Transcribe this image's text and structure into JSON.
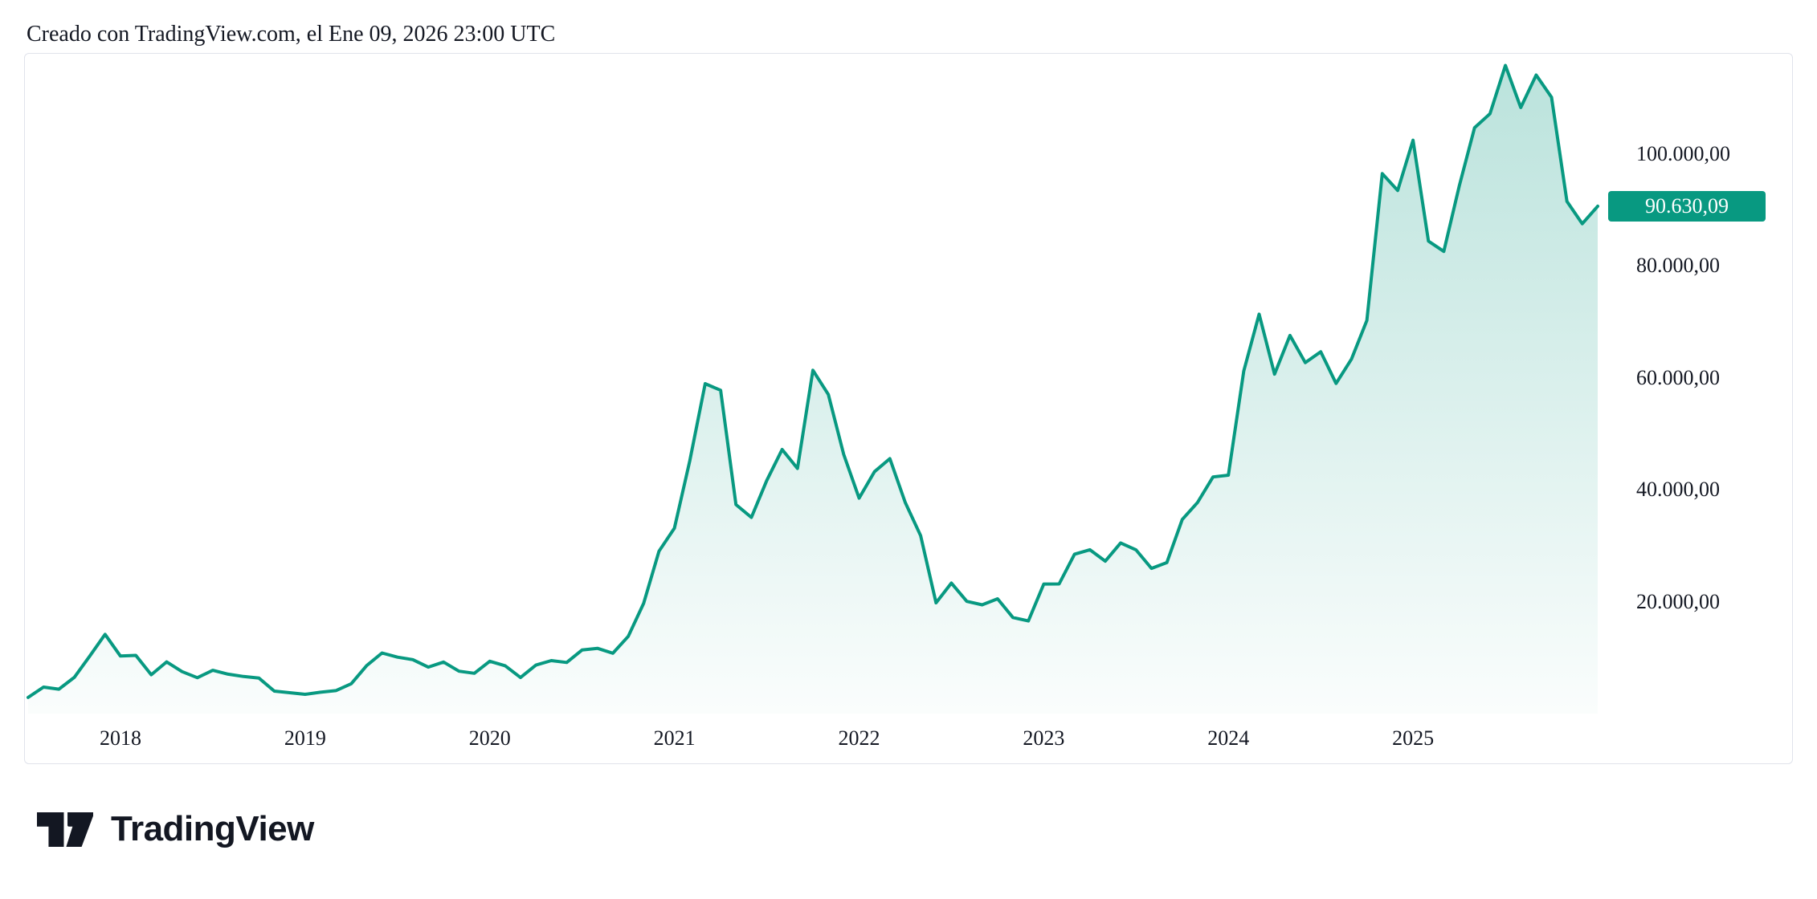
{
  "header": {
    "attribution": "Creado con TradingView.com, el Ene 09, 2026 23:00 UTC"
  },
  "footer": {
    "brand": "TradingView"
  },
  "colors": {
    "accent": "#089981",
    "badge_text": "#ffffff",
    "text": "#131722",
    "border": "#e0e3eb",
    "background": "#ffffff"
  },
  "chart_data": {
    "type": "area",
    "title": "",
    "xlabel": "",
    "ylabel": "",
    "grid": false,
    "legend": false,
    "ylim": [
      0,
      118000
    ],
    "line_color": "#089981",
    "fill_top": "rgba(8,153,129,0.28)",
    "fill_bottom": "rgba(8,153,129,0.02)",
    "x": [
      "2017-07",
      "2017-08",
      "2017-09",
      "2017-10",
      "2017-11",
      "2017-12",
      "2018-01",
      "2018-02",
      "2018-03",
      "2018-04",
      "2018-05",
      "2018-06",
      "2018-07",
      "2018-08",
      "2018-09",
      "2018-10",
      "2018-11",
      "2018-12",
      "2019-01",
      "2019-02",
      "2019-03",
      "2019-04",
      "2019-05",
      "2019-06",
      "2019-07",
      "2019-08",
      "2019-09",
      "2019-10",
      "2019-11",
      "2019-12",
      "2020-01",
      "2020-02",
      "2020-03",
      "2020-04",
      "2020-05",
      "2020-06",
      "2020-07",
      "2020-08",
      "2020-09",
      "2020-10",
      "2020-11",
      "2020-12",
      "2021-01",
      "2021-02",
      "2021-03",
      "2021-04",
      "2021-05",
      "2021-06",
      "2021-07",
      "2021-08",
      "2021-09",
      "2021-10",
      "2021-11",
      "2021-12",
      "2022-01",
      "2022-02",
      "2022-03",
      "2022-04",
      "2022-05",
      "2022-06",
      "2022-07",
      "2022-08",
      "2022-09",
      "2022-10",
      "2022-11",
      "2022-12",
      "2023-01",
      "2023-02",
      "2023-03",
      "2023-04",
      "2023-05",
      "2023-06",
      "2023-07",
      "2023-08",
      "2023-09",
      "2023-10",
      "2023-11",
      "2023-12",
      "2024-01",
      "2024-02",
      "2024-03",
      "2024-04",
      "2024-05",
      "2024-06",
      "2024-07",
      "2024-08",
      "2024-09",
      "2024-10",
      "2024-11",
      "2024-12",
      "2025-01",
      "2025-02",
      "2025-03",
      "2025-04",
      "2025-05",
      "2025-06",
      "2025-07",
      "2025-08",
      "2025-09",
      "2025-10",
      "2025-11",
      "2025-12",
      "2026-01"
    ],
    "values": [
      2875,
      4735,
      4360,
      6468,
      10233,
      14156,
      10285,
      10397,
      6938,
      9240,
      7494,
      6404,
      7729,
      7033,
      6626,
      6342,
      4017,
      3733,
      3437,
      3817,
      4106,
      5334,
      8574,
      10818,
      10086,
      9630,
      8308,
      9199,
      7569,
      7194,
      9350,
      8543,
      6438,
      8658,
      9461,
      9138,
      11351,
      11655,
      10776,
      13797,
      19698,
      29002,
      33114,
      45138,
      58919,
      57750,
      37333,
      35041,
      41626,
      47167,
      43791,
      61319,
      57006,
      46307,
      38483,
      43193,
      45539,
      37714,
      31792,
      19785,
      23307,
      20050,
      19432,
      20496,
      17168,
      16548,
      23139,
      23147,
      28478,
      29268,
      27221,
      30477,
      29232,
      25932,
      26967,
      34668,
      37719,
      42265,
      42580,
      61198,
      71334,
      60637,
      67540,
      62678,
      64628,
      58974,
      63330,
      70215,
      96450,
      93429,
      102405,
      84381,
      82549,
      94208,
      104638,
      107135,
      115768,
      108237,
      114056,
      110090,
      91483,
      87500,
      90630.09
    ],
    "y_ticks": [
      {
        "value": 100000,
        "label": "100.000,00"
      },
      {
        "value": 80000,
        "label": "80.000,00"
      },
      {
        "value": 60000,
        "label": "60.000,00"
      },
      {
        "value": 40000,
        "label": "40.000,00"
      },
      {
        "value": 20000,
        "label": "20.000,00"
      }
    ],
    "x_ticks": [
      {
        "label": "2018",
        "index": 6
      },
      {
        "label": "2019",
        "index": 18
      },
      {
        "label": "2020",
        "index": 30
      },
      {
        "label": "2021",
        "index": 42
      },
      {
        "label": "2022",
        "index": 54
      },
      {
        "label": "2023",
        "index": 66
      },
      {
        "label": "2024",
        "index": 78
      },
      {
        "label": "2025",
        "index": 90
      }
    ],
    "last_price": {
      "value": 90630.09,
      "label": "90.630,09"
    }
  }
}
